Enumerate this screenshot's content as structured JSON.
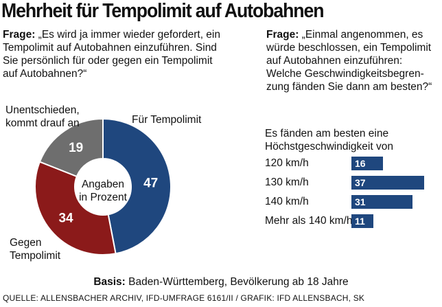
{
  "title": "Mehrheit für Tempolimit auf Autobahnen",
  "question_left": {
    "prefix": "Frage:",
    "text": " „Es wird ja immer wieder gefordert, ein Tempolimit auf Autobahnen einzuführen. Sind Sie persönlich für oder gegen ein Tempolimit auf Autobahnen?“"
  },
  "question_right": {
    "prefix": "Frage:",
    "text": " „Einmal angenommen, es würde beschlossen, ein Tempolimit auf Autobahnen einzuführen: Welche Geschwindigkeitsbegren-zung fänden Sie dann am besten?“"
  },
  "labels": {
    "undecided_line1": "Unentschieden,",
    "undecided_line2": "kommt drauf an",
    "for": "Für Tempolimit",
    "against_line1": "Gegen",
    "against_line2": "Tempolimit",
    "center_line1": "Angaben",
    "center_line2": "in Prozent",
    "bars_head_line1": "Es fänden am besten eine",
    "bars_head_line2": "Höchstgeschwindigkeit von"
  },
  "colors": {
    "for": "#1f477e",
    "against": "#8b1a1a",
    "undecided": "#6e6e6e",
    "bar": "#1f477e"
  },
  "chart_data": [
    {
      "type": "pie",
      "title": "Angaben in Prozent",
      "categories": [
        "Für Tempolimit",
        "Gegen Tempolimit",
        "Unentschieden, kommt drauf an"
      ],
      "values": [
        47,
        34,
        19
      ]
    },
    {
      "type": "bar",
      "title": "Es fänden am besten eine Höchstgeschwindigkeit von",
      "categories": [
        "120 km/h",
        "130 km/h",
        "140 km/h",
        "Mehr als 140 km/h"
      ],
      "values": [
        16,
        37,
        31,
        11
      ],
      "xlim": [
        0,
        37
      ]
    }
  ],
  "basis": {
    "prefix": "Basis:",
    "text": " Baden-Württemberg, Bevölkerung ab 18 Jahre"
  },
  "source": "QUELLE: ALLENSBACHER ARCHIV, IFD-UMFRAGE 6161/II / GRAFIK: IFD ALLENSBACH, SK"
}
